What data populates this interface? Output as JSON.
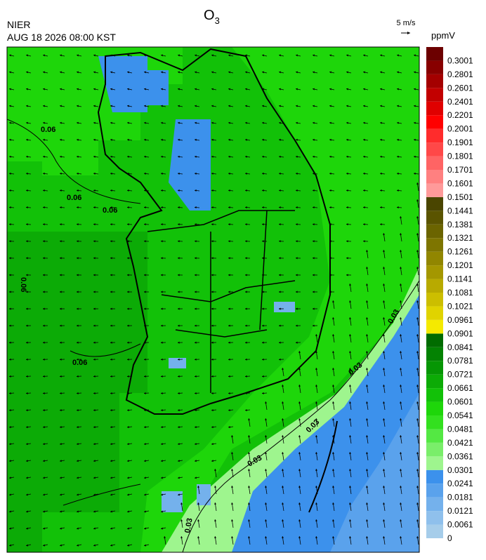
{
  "header": {
    "agency": "NIER",
    "datetime": "AUG 18 2026 08:00 KST",
    "title": {
      "base": "O",
      "subscript": "3"
    },
    "wind_scale": "5 m/s",
    "unit": "ppmV"
  },
  "colorbar": {
    "levels": [
      0,
      0.0061,
      0.0121,
      0.0181,
      0.0241,
      0.0301,
      0.0361,
      0.0421,
      0.0481,
      0.0541,
      0.0601,
      0.0661,
      0.0721,
      0.0781,
      0.0841,
      0.0901,
      0.0961,
      0.1021,
      0.1081,
      0.1141,
      0.1201,
      0.1261,
      0.1321,
      0.1381,
      0.1441,
      0.1501,
      0.1601,
      0.1701,
      0.1801,
      0.1901,
      0.2001,
      0.2201,
      0.2401,
      0.2601,
      0.2801,
      0.3001
    ],
    "colors": [
      "#a6cdea",
      "#8fc0ec",
      "#74b1ec",
      "#5aa2ec",
      "#3c91ec",
      "#9ef58e",
      "#7aee6a",
      "#54e843",
      "#33e01f",
      "#1ed60a",
      "#12c108",
      "#0cab06",
      "#069604",
      "#038202",
      "#016c00",
      "#f5ea00",
      "#e0d300",
      "#ccbe00",
      "#b8aa00",
      "#a49700",
      "#918600",
      "#7e7500",
      "#6b6400",
      "#5a5400",
      "#4a4500",
      "#ff9a9a",
      "#ff8080",
      "#ff6464",
      "#ff4848",
      "#ff2c2c",
      "#ff0000",
      "#e00000",
      "#c20000",
      "#a40000",
      "#880000",
      "#6c0000"
    ]
  },
  "contour_labels": [
    "0.06",
    "0.06",
    "0.06",
    "0.06",
    "0.06",
    "0.03",
    "0.03",
    "0.03",
    "0.03",
    "0.03"
  ]
}
